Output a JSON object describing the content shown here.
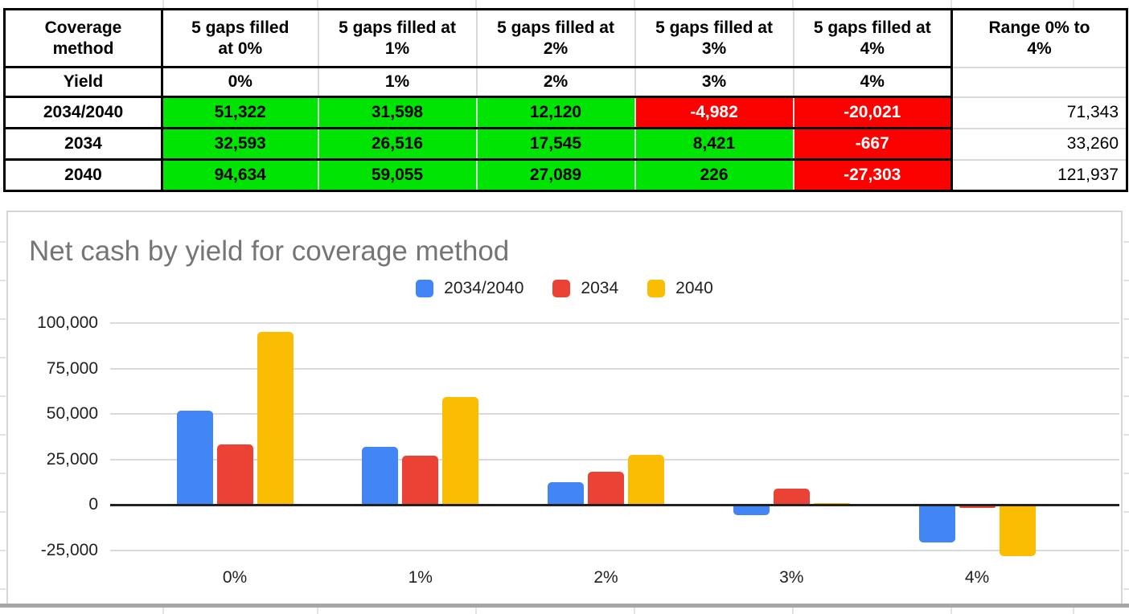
{
  "table": {
    "header": {
      "method_label": "Coverage\nmethod",
      "gap_headers": [
        "5 gaps filled\nat 0%",
        "5 gaps filled at\n1%",
        "5 gaps filled at\n2%",
        "5 gaps filled at\n3%",
        "5 gaps filled at\n4%"
      ],
      "range_label": "Range 0% to\n4%"
    },
    "yield_row": {
      "label": "Yield",
      "values": [
        "0%",
        "1%",
        "2%",
        "3%",
        "4%"
      ],
      "range": ""
    },
    "rows": [
      {
        "label": "2034/2040",
        "values": [
          "51,322",
          "31,598",
          "12,120",
          "-4,982",
          "-20,021"
        ],
        "states": [
          "pos",
          "pos",
          "pos",
          "neg",
          "neg"
        ],
        "range": "71,343"
      },
      {
        "label": "2034",
        "values": [
          "32,593",
          "26,516",
          "17,545",
          "8,421",
          "-667"
        ],
        "states": [
          "pos",
          "pos",
          "pos",
          "pos",
          "neg"
        ],
        "range": "33,260"
      },
      {
        "label": "2040",
        "values": [
          "94,634",
          "59,055",
          "27,089",
          "226",
          "-27,303"
        ],
        "states": [
          "pos",
          "pos",
          "pos",
          "pos",
          "neg"
        ],
        "range": "121,937"
      }
    ],
    "colors": {
      "positive_bg": "#00e404",
      "negative_bg": "#fb0200",
      "negative_text": "#ffffff",
      "separator": "#d9d9d9",
      "border": "#000000"
    }
  },
  "chart_data": {
    "type": "bar",
    "title": "Net cash by yield for coverage method",
    "title_color": "#757575",
    "categories": [
      "0%",
      "1%",
      "2%",
      "3%",
      "4%"
    ],
    "series": [
      {
        "name": "2034/2040",
        "color": "#4285f4",
        "values": [
          51322,
          31598,
          12120,
          -4982,
          -20021
        ]
      },
      {
        "name": "2034",
        "color": "#ea4335",
        "values": [
          32593,
          26516,
          17545,
          8421,
          -667
        ]
      },
      {
        "name": "2040",
        "color": "#fbbc04",
        "values": [
          94634,
          59055,
          27089,
          226,
          -27303
        ]
      }
    ],
    "y_axis": {
      "tick_labels": [
        "100,000",
        "75,000",
        "50,000",
        "25,000",
        "0",
        "-25,000"
      ],
      "tick_values": [
        100000,
        75000,
        50000,
        25000,
        0,
        -25000
      ]
    },
    "ylim": [
      -37000,
      112000
    ],
    "grid": true,
    "legend_position": "top",
    "gridline_color": "#d9d9d9",
    "zero_line_color": "#212121",
    "axis_text_color": "#202124"
  },
  "spreadsheet": {
    "gridline_color": "#e2e2e2",
    "column_border_positions": [
      202,
      394,
      591,
      788,
      985,
      1182,
      1334
    ],
    "row_border_positions": [
      300,
      348,
      396,
      444,
      492,
      540,
      588,
      636,
      684,
      732
    ],
    "divider_color": "#a6a6a6"
  }
}
